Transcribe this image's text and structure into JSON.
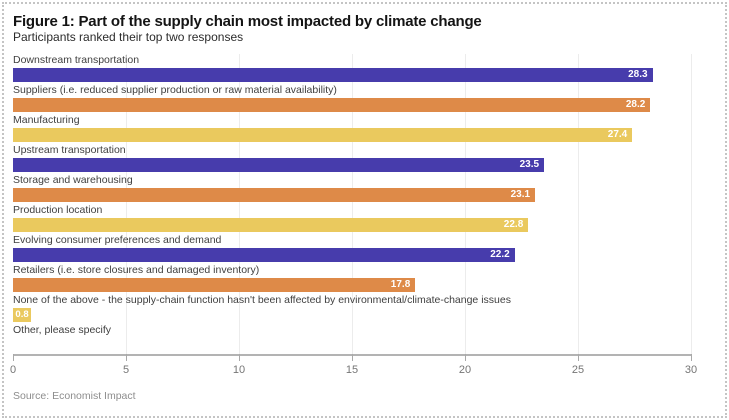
{
  "header": {
    "title": "Figure 1: Part of the supply chain most impacted by climate change",
    "subtitle": "Participants ranked their top two responses"
  },
  "footer": {
    "source": "Source: Economist Impact"
  },
  "chart_data": {
    "type": "bar",
    "orientation": "horizontal",
    "title": "Figure 1: Part of the supply chain most impacted by climate change",
    "subtitle": "Participants ranked their top two responses",
    "categories": [
      "Downstream transportation",
      "Suppliers (i.e. reduced supplier production or raw material availability)",
      "Manufacturing",
      "Upstream transportation",
      "Storage and warehousing",
      "Production location",
      "Evolving consumer preferences and demand",
      "Retailers (i.e. store closures and damaged inventory)",
      "None of the above - the supply-chain function hasn't been affected by environmental/climate-change issues",
      "Other, please specify"
    ],
    "values": [
      28.3,
      28.2,
      27.4,
      23.5,
      23.1,
      22.8,
      22.2,
      17.8,
      0.8,
      0
    ],
    "bar_colors": [
      "indigo",
      "orange",
      "yellow",
      "indigo",
      "orange",
      "yellow",
      "indigo",
      "orange",
      "yellow",
      "indigo"
    ],
    "palette": {
      "indigo": "#473CAC",
      "orange": "#DE8A48",
      "yellow": "#EAC95E"
    },
    "value_label_color": "#ffffff",
    "xlabel": "",
    "ylabel": "",
    "xlim": [
      0,
      30
    ],
    "x_ticks": [
      0,
      5,
      10,
      15,
      20,
      25,
      30
    ],
    "grid": "vertical",
    "legend": "none",
    "source": "Source: Economist Impact"
  }
}
